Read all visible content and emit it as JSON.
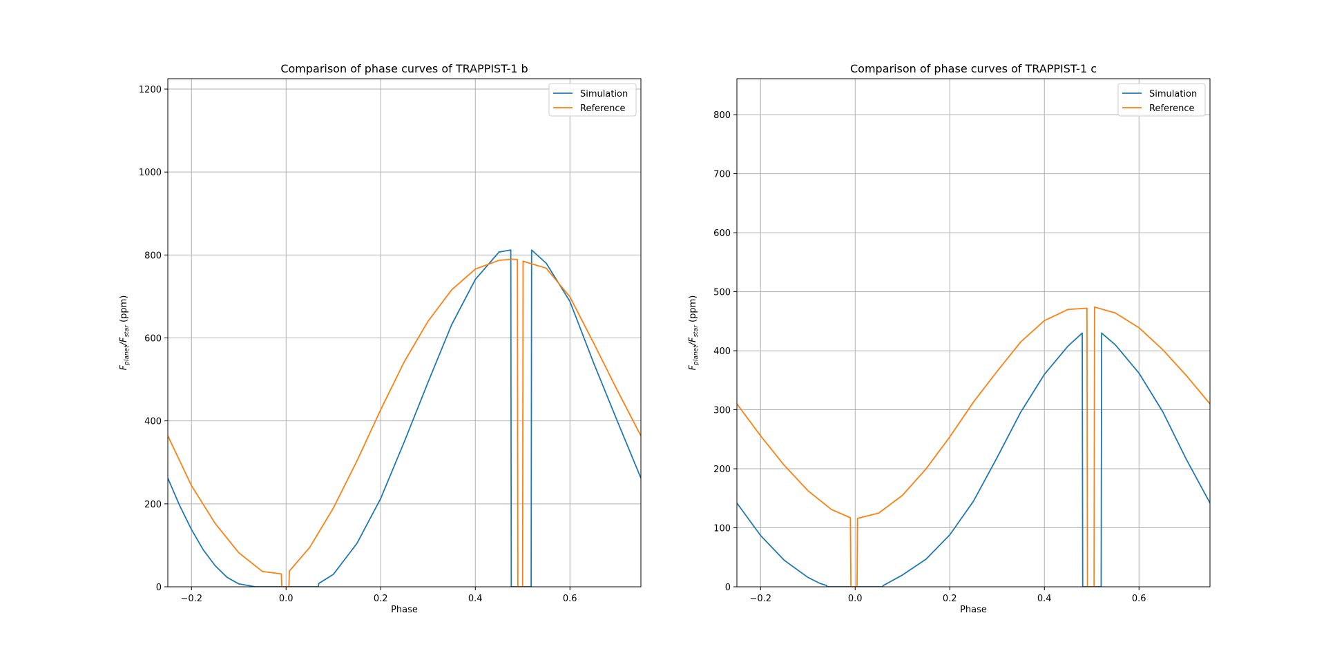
{
  "chart_data": [
    {
      "type": "line",
      "title": "Comparison of phase curves of TRAPPIST-1 b",
      "xlabel": "Phase",
      "ylabel_main": "F",
      "ylabel_sub1": "planet",
      "ylabel_mid": "/F",
      "ylabel_sub2": "star",
      "ylabel_unit": " (ppm)",
      "xlim": [
        -0.25,
        0.75
      ],
      "ylim": [
        0,
        1225
      ],
      "xticks": [
        -0.2,
        0.0,
        0.2,
        0.4,
        0.6
      ],
      "xtick_labels": [
        "−0.2",
        "0.0",
        "0.2",
        "0.4",
        "0.6"
      ],
      "yticks": [
        0,
        200,
        400,
        600,
        800,
        1000,
        1200
      ],
      "ytick_labels": [
        "0",
        "200",
        "400",
        "600",
        "800",
        "1000",
        "1200"
      ],
      "grid": true,
      "legend_position": "upper right",
      "series": [
        {
          "name": "Simulation",
          "color": "#1f77b4",
          "x": [
            -0.25,
            -0.225,
            -0.2,
            -0.175,
            -0.15,
            -0.125,
            -0.1,
            -0.075,
            -0.065,
            -0.064,
            0.0,
            0.068,
            0.069,
            0.1,
            0.15,
            0.2,
            0.25,
            0.3,
            0.35,
            0.4,
            0.45,
            0.475,
            0.476,
            0.518,
            0.519,
            0.55,
            0.6,
            0.65,
            0.7,
            0.75
          ],
          "y": [
            262,
            196,
            138,
            89,
            51,
            23,
            7,
            2,
            0,
            0,
            0,
            0,
            8,
            30,
            105,
            213,
            350,
            493,
            632,
            741,
            807,
            812,
            0,
            0,
            812,
            780,
            688,
            540,
            400,
            262
          ]
        },
        {
          "name": "Reference",
          "color": "#ff7f0e",
          "x": [
            -0.25,
            -0.2,
            -0.15,
            -0.1,
            -0.05,
            -0.01,
            -0.009,
            0.006,
            0.007,
            0.05,
            0.1,
            0.15,
            0.2,
            0.25,
            0.3,
            0.35,
            0.4,
            0.45,
            0.48,
            0.489,
            0.49,
            0.5,
            0.501,
            0.55,
            0.6,
            0.65,
            0.7,
            0.75
          ],
          "y": [
            364,
            244,
            153,
            82,
            37,
            31,
            0,
            0,
            38,
            95,
            190,
            304,
            427,
            543,
            640,
            716,
            766,
            787,
            790,
            789,
            0,
            0,
            785,
            768,
            699,
            588,
            474,
            364
          ]
        }
      ]
    },
    {
      "type": "line",
      "title": "Comparison of phase curves of TRAPPIST-1 c",
      "xlabel": "Phase",
      "ylabel_main": "F",
      "ylabel_sub1": "planet",
      "ylabel_mid": "/F",
      "ylabel_sub2": "star",
      "ylabel_unit": " (ppm)",
      "xlim": [
        -0.25,
        0.75
      ],
      "ylim": [
        0,
        861
      ],
      "xticks": [
        -0.2,
        0.0,
        0.2,
        0.4,
        0.6
      ],
      "xtick_labels": [
        "−0.2",
        "0.0",
        "0.2",
        "0.4",
        "0.6"
      ],
      "yticks": [
        0,
        100,
        200,
        300,
        400,
        500,
        600,
        700,
        800
      ],
      "ytick_labels": [
        "0",
        "100",
        "200",
        "300",
        "400",
        "500",
        "600",
        "700",
        "800"
      ],
      "grid": true,
      "legend_position": "upper right",
      "series": [
        {
          "name": "Simulation",
          "color": "#1f77b4",
          "x": [
            -0.25,
            -0.2,
            -0.15,
            -0.1,
            -0.075,
            -0.06,
            -0.059,
            0.0,
            0.058,
            0.059,
            0.1,
            0.15,
            0.2,
            0.25,
            0.3,
            0.35,
            0.4,
            0.45,
            0.48,
            0.481,
            0.52,
            0.521,
            0.55,
            0.6,
            0.65,
            0.7,
            0.75
          ],
          "y": [
            142,
            87,
            45,
            16,
            6,
            2,
            0,
            0,
            0,
            2,
            20,
            47,
            88,
            145,
            219,
            296,
            360,
            408,
            430,
            0,
            0,
            430,
            410,
            362,
            297,
            216,
            142
          ]
        },
        {
          "name": "Reference",
          "color": "#ff7f0e",
          "x": [
            -0.25,
            -0.2,
            -0.15,
            -0.1,
            -0.05,
            -0.01,
            -0.009,
            0.004,
            0.005,
            0.05,
            0.1,
            0.15,
            0.2,
            0.25,
            0.3,
            0.35,
            0.4,
            0.45,
            0.49,
            0.491,
            0.505,
            0.506,
            0.55,
            0.6,
            0.65,
            0.7,
            0.75
          ],
          "y": [
            310,
            256,
            206,
            163,
            131,
            117,
            0,
            0,
            116,
            125,
            155,
            200,
            254,
            313,
            365,
            415,
            451,
            470,
            472,
            0,
            0,
            474,
            464,
            439,
            402,
            358,
            310
          ]
        }
      ]
    }
  ]
}
